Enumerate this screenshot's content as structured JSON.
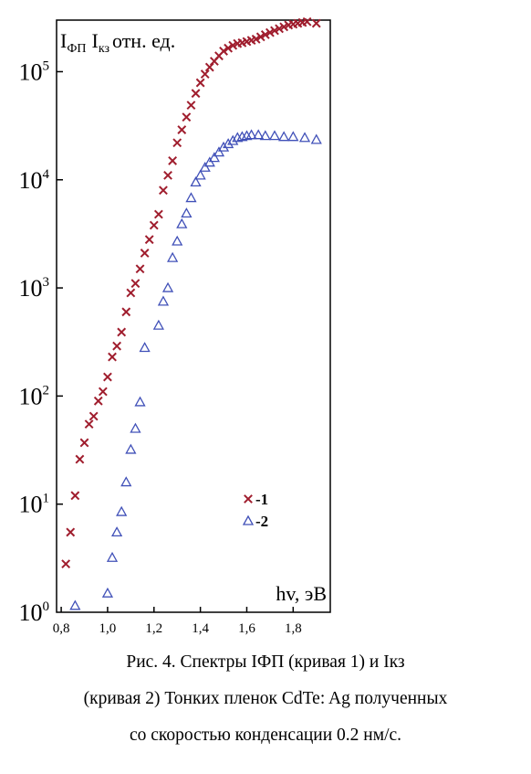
{
  "chart_data": {
    "type": "scatter",
    "xlim": [
      0.78,
      1.96
    ],
    "ylim": [
      1,
      300000
    ],
    "y_scale": "log",
    "x_ticks": [
      {
        "value": 0.8,
        "label": "0,8"
      },
      {
        "value": 1.0,
        "label": "1,0"
      },
      {
        "value": 1.2,
        "label": "1,2"
      },
      {
        "value": 1.4,
        "label": "1,4"
      },
      {
        "value": 1.6,
        "label": "1,6"
      },
      {
        "value": 1.8,
        "label": "1,8"
      }
    ],
    "y_ticks": [
      {
        "value": 1,
        "base": "10",
        "exp": "0"
      },
      {
        "value": 10,
        "base": "10",
        "exp": "1"
      },
      {
        "value": 100,
        "base": "10",
        "exp": "2"
      },
      {
        "value": 1000,
        "base": "10",
        "exp": "3"
      },
      {
        "value": 10000,
        "base": "10",
        "exp": "4"
      },
      {
        "value": 100000,
        "base": "10",
        "exp": "5"
      }
    ],
    "y_title": {
      "s1": "I",
      "s1_sub": "ФП",
      "s2": "I",
      "s2_sub": "кз",
      "rest": "отн. ед."
    },
    "x_title": "hv, эВ",
    "legend_position": "bottom-right",
    "grid": false,
    "series": [
      {
        "name": "-1",
        "marker": "×",
        "color": "#a01e2e",
        "x": [
          0.82,
          0.84,
          0.86,
          0.88,
          0.9,
          0.92,
          0.94,
          0.96,
          0.98,
          1.0,
          1.02,
          1.04,
          1.06,
          1.08,
          1.1,
          1.12,
          1.14,
          1.16,
          1.18,
          1.2,
          1.22,
          1.24,
          1.26,
          1.28,
          1.3,
          1.32,
          1.34,
          1.36,
          1.38,
          1.4,
          1.42,
          1.44,
          1.46,
          1.48,
          1.5,
          1.52,
          1.54,
          1.56,
          1.58,
          1.6,
          1.62,
          1.64,
          1.66,
          1.68,
          1.7,
          1.72,
          1.74,
          1.76,
          1.78,
          1.8,
          1.82,
          1.84,
          1.86,
          1.9
        ],
        "y": [
          2.8,
          5.5,
          12,
          26,
          37,
          55,
          65,
          90,
          110,
          150,
          230,
          290,
          390,
          600,
          900,
          1100,
          1500,
          2100,
          2800,
          3800,
          4800,
          8000,
          11000,
          15000,
          22000,
          29000,
          38000,
          49000,
          63000,
          79000,
          95000,
          110000,
          125000,
          140000,
          155000,
          165000,
          175000,
          182000,
          185000,
          190000,
          195000,
          200000,
          210000,
          220000,
          230000,
          240000,
          250000,
          260000,
          270000,
          275000,
          280000,
          285000,
          290000,
          280000
        ]
      },
      {
        "name": "-2",
        "marker": "△",
        "color": "#4050b8",
        "x": [
          0.86,
          1.0,
          1.02,
          1.04,
          1.06,
          1.08,
          1.1,
          1.12,
          1.14,
          1.16,
          1.22,
          1.24,
          1.26,
          1.28,
          1.3,
          1.32,
          1.34,
          1.36,
          1.38,
          1.4,
          1.42,
          1.44,
          1.46,
          1.48,
          1.5,
          1.52,
          1.54,
          1.56,
          1.58,
          1.6,
          1.62,
          1.65,
          1.68,
          1.72,
          1.76,
          1.8,
          1.85,
          1.9
        ],
        "y": [
          1.15,
          1.5,
          3.2,
          5.5,
          8.5,
          16,
          32,
          50,
          88,
          280,
          450,
          750,
          1000,
          1900,
          2700,
          3900,
          4900,
          6800,
          9500,
          11000,
          13000,
          14500,
          16000,
          18000,
          20000,
          21500,
          23000,
          24500,
          25000,
          25500,
          26000,
          26000,
          25500,
          25500,
          25000,
          25000,
          24500,
          23500
        ]
      }
    ]
  },
  "caption": {
    "line1": "Рис. 4. Спектры IФП (кривая 1) и Iкз",
    "line2": "(кривая 2) Тонких пленок CdTe: Ag полученных",
    "line3": "со скоростью конденсации 0.2 нм/с."
  }
}
